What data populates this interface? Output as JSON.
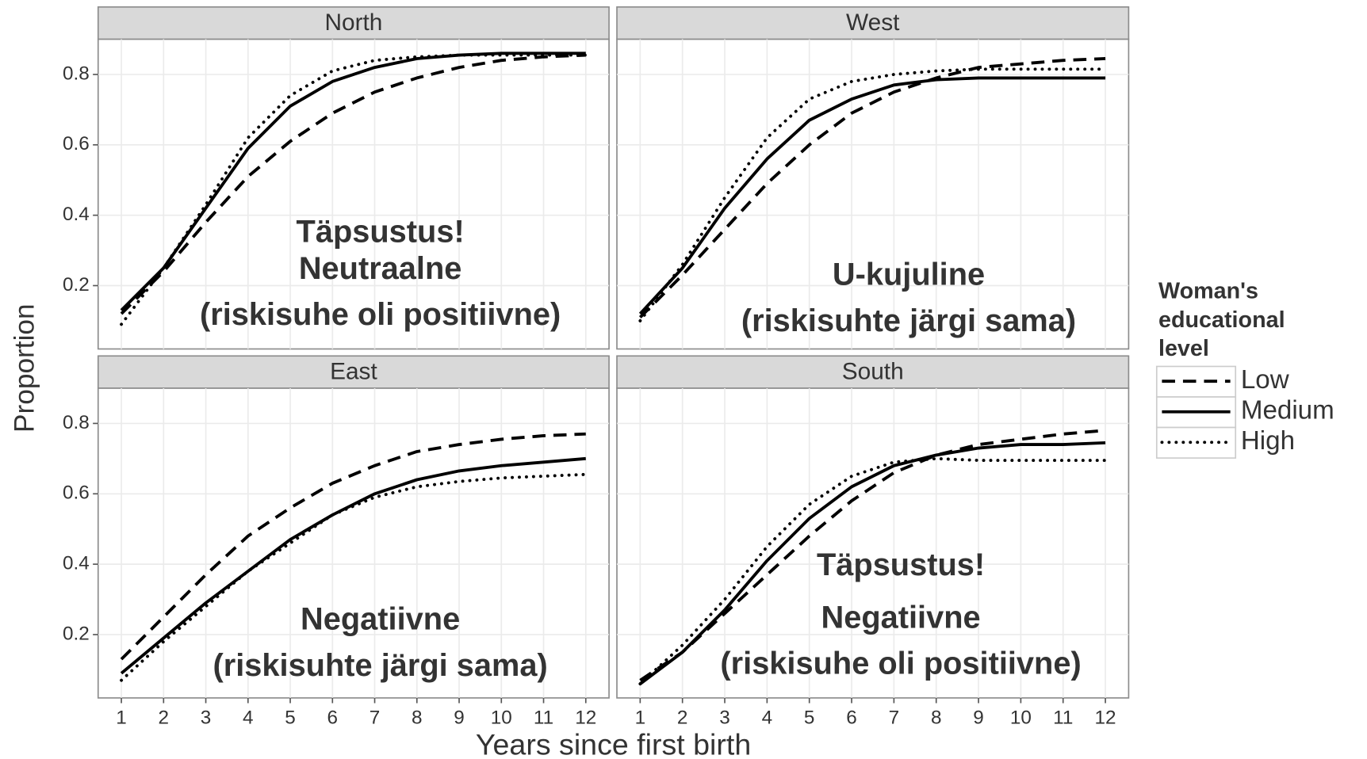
{
  "figure": {
    "xlabel": "Years since first birth",
    "ylabel": "Proportion",
    "legend_title": [
      "Woman's",
      "educational",
      "level"
    ]
  },
  "chart_data": [
    {
      "type": "line",
      "title": "North",
      "x": [
        1,
        2,
        3,
        4,
        5,
        6,
        7,
        8,
        9,
        10,
        11,
        12
      ],
      "xlim": [
        0.45,
        12.55
      ],
      "xticks": [
        1,
        2,
        3,
        4,
        5,
        6,
        7,
        8,
        9,
        10,
        11,
        12
      ],
      "ylim": [
        0.02,
        0.9
      ],
      "yticks": [
        0.2,
        0.4,
        0.6,
        0.8
      ],
      "grid": true,
      "series": [
        {
          "name": "Low",
          "color": "#000000",
          "linestyle": "dashed",
          "values": [
            0.12,
            0.24,
            0.38,
            0.51,
            0.61,
            0.69,
            0.75,
            0.79,
            0.82,
            0.84,
            0.85,
            0.855
          ]
        },
        {
          "name": "Medium",
          "color": "#000000",
          "linestyle": "solid",
          "values": [
            0.13,
            0.25,
            0.42,
            0.59,
            0.71,
            0.78,
            0.82,
            0.845,
            0.855,
            0.86,
            0.86,
            0.86
          ]
        },
        {
          "name": "High",
          "color": "#000000",
          "linestyle": "dotted",
          "values": [
            0.09,
            0.25,
            0.43,
            0.62,
            0.74,
            0.81,
            0.84,
            0.85,
            0.855,
            0.855,
            0.855,
            0.855
          ]
        }
      ],
      "annotations": [
        {
          "text": "Täpsustus!",
          "color": "#ff0000"
        },
        {
          "text": "Neutraalne",
          "color": "#1aab4b"
        },
        {
          "text": "(riskisuhe oli positiivne)",
          "color": "#000000"
        }
      ]
    },
    {
      "type": "line",
      "title": "West",
      "x": [
        1,
        2,
        3,
        4,
        5,
        6,
        7,
        8,
        9,
        10,
        11,
        12
      ],
      "xlim": [
        0.45,
        12.55
      ],
      "xticks": [
        1,
        2,
        3,
        4,
        5,
        6,
        7,
        8,
        9,
        10,
        11,
        12
      ],
      "ylim": [
        0.02,
        0.9
      ],
      "yticks": [
        0.2,
        0.4,
        0.6,
        0.8
      ],
      "grid": true,
      "series": [
        {
          "name": "Low",
          "color": "#000000",
          "linestyle": "dashed",
          "values": [
            0.11,
            0.23,
            0.36,
            0.49,
            0.6,
            0.69,
            0.75,
            0.79,
            0.82,
            0.83,
            0.84,
            0.845
          ]
        },
        {
          "name": "Medium",
          "color": "#000000",
          "linestyle": "solid",
          "values": [
            0.12,
            0.25,
            0.42,
            0.56,
            0.67,
            0.73,
            0.77,
            0.785,
            0.79,
            0.79,
            0.79,
            0.79
          ]
        },
        {
          "name": "High",
          "color": "#000000",
          "linestyle": "dotted",
          "values": [
            0.1,
            0.26,
            0.45,
            0.62,
            0.73,
            0.78,
            0.8,
            0.81,
            0.815,
            0.815,
            0.815,
            0.815
          ]
        }
      ],
      "annotations": [
        {
          "text": "U-kujuline",
          "color": "#1aab4b"
        },
        {
          "text": "(riskisuhte järgi sama)",
          "color": "#000000"
        }
      ]
    },
    {
      "type": "line",
      "title": "East",
      "x": [
        1,
        2,
        3,
        4,
        5,
        6,
        7,
        8,
        9,
        10,
        11,
        12
      ],
      "xlim": [
        0.45,
        12.55
      ],
      "xticks": [
        1,
        2,
        3,
        4,
        5,
        6,
        7,
        8,
        9,
        10,
        11,
        12
      ],
      "ylim": [
        0.02,
        0.9
      ],
      "yticks": [
        0.2,
        0.4,
        0.6,
        0.8
      ],
      "grid": true,
      "series": [
        {
          "name": "Low",
          "color": "#000000",
          "linestyle": "dashed",
          "values": [
            0.13,
            0.25,
            0.37,
            0.48,
            0.56,
            0.63,
            0.68,
            0.72,
            0.74,
            0.755,
            0.765,
            0.77
          ]
        },
        {
          "name": "Medium",
          "color": "#000000",
          "linestyle": "solid",
          "values": [
            0.09,
            0.19,
            0.29,
            0.38,
            0.47,
            0.54,
            0.6,
            0.64,
            0.665,
            0.68,
            0.69,
            0.7
          ]
        },
        {
          "name": "High",
          "color": "#000000",
          "linestyle": "dotted",
          "values": [
            0.07,
            0.18,
            0.28,
            0.38,
            0.46,
            0.54,
            0.59,
            0.62,
            0.635,
            0.645,
            0.65,
            0.655
          ]
        }
      ],
      "annotations": [
        {
          "text": "Negatiivne",
          "color": "#1aab4b"
        },
        {
          "text": "(riskisuhte järgi sama)",
          "color": "#000000"
        }
      ]
    },
    {
      "type": "line",
      "title": "South",
      "x": [
        1,
        2,
        3,
        4,
        5,
        6,
        7,
        8,
        9,
        10,
        11,
        12
      ],
      "xlim": [
        0.45,
        12.55
      ],
      "xticks": [
        1,
        2,
        3,
        4,
        5,
        6,
        7,
        8,
        9,
        10,
        11,
        12
      ],
      "ylim": [
        0.02,
        0.9
      ],
      "yticks": [
        0.2,
        0.4,
        0.6,
        0.8
      ],
      "grid": true,
      "series": [
        {
          "name": "Low",
          "color": "#000000",
          "linestyle": "dashed",
          "values": [
            0.07,
            0.15,
            0.26,
            0.37,
            0.48,
            0.58,
            0.66,
            0.71,
            0.74,
            0.755,
            0.77,
            0.78
          ]
        },
        {
          "name": "Medium",
          "color": "#000000",
          "linestyle": "solid",
          "values": [
            0.06,
            0.15,
            0.27,
            0.41,
            0.53,
            0.62,
            0.68,
            0.71,
            0.73,
            0.74,
            0.74,
            0.745
          ]
        },
        {
          "name": "High",
          "color": "#000000",
          "linestyle": "dotted",
          "values": [
            0.06,
            0.17,
            0.3,
            0.45,
            0.57,
            0.65,
            0.69,
            0.7,
            0.695,
            0.695,
            0.695,
            0.695
          ]
        }
      ],
      "annotations": [
        {
          "text": "Täpsustus!",
          "color": "#ff0000"
        },
        {
          "text": "Negatiivne",
          "color": "#1aab4b"
        },
        {
          "text": "(riskisuhe oli positiivne)",
          "color": "#000000"
        }
      ]
    }
  ]
}
